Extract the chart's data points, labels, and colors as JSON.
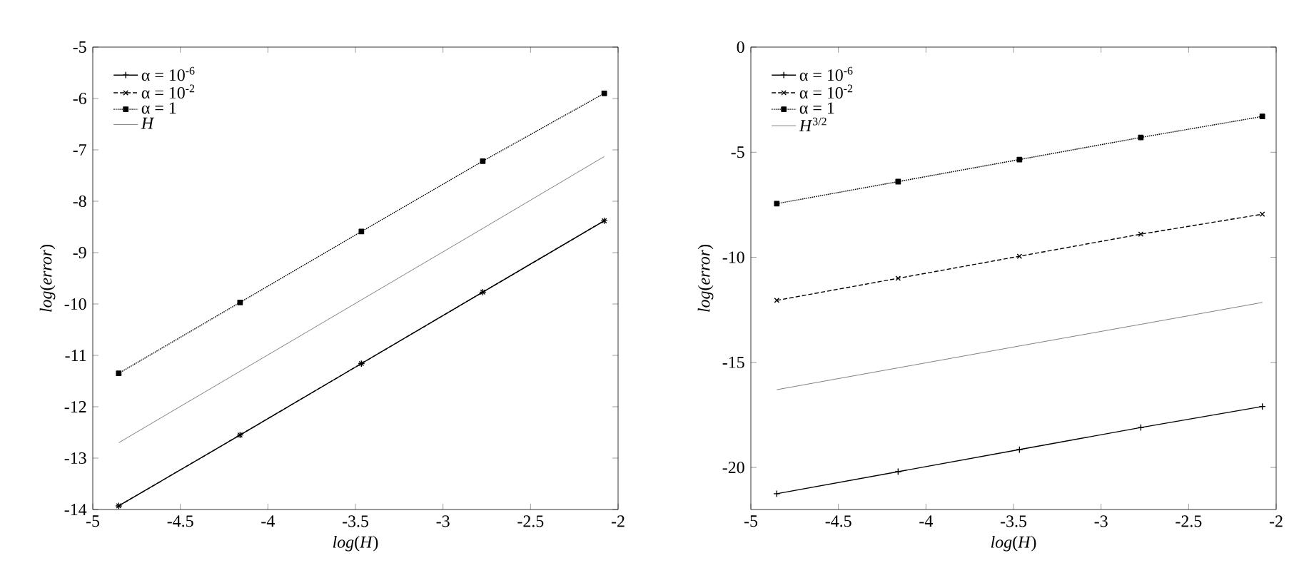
{
  "chart_data": [
    {
      "type": "line",
      "xlabel": "*log*(*H*)",
      "ylabel": "*log*(*error*)",
      "xlim": [
        -5,
        -2
      ],
      "ylim": [
        -14,
        -5
      ],
      "xticks": [
        -5,
        -4.5,
        -4,
        -3.5,
        -3,
        -2.5,
        -2
      ],
      "yticks": [
        -14,
        -13,
        -12,
        -11,
        -10,
        -9,
        -8,
        -7,
        -6,
        -5
      ],
      "legend": "top left",
      "x": [
        -4.852,
        -4.159,
        -3.466,
        -2.773,
        -2.079
      ],
      "series": [
        {
          "name": "α = 10$^{-6}$",
          "color": "#000000",
          "marker": "plus",
          "line_style": "solid",
          "values": [
            -13.93,
            -12.55,
            -11.16,
            -9.77,
            -8.38
          ]
        },
        {
          "name": "α = 10$^{-2}$",
          "color": "#000000",
          "marker": "cross",
          "line_style": "dashed",
          "values": [
            -13.93,
            -12.55,
            -11.16,
            -9.77,
            -8.38
          ]
        },
        {
          "name": "α = 1",
          "color": "#000000",
          "marker": "square",
          "line_style": "dotted",
          "values": [
            -11.35,
            -9.97,
            -8.59,
            -7.22,
            -5.9
          ]
        },
        {
          "name": "*H*",
          "color": "#808080",
          "marker": "none",
          "line_style": "solid",
          "values": [
            -12.7,
            -11.31,
            -9.92,
            -8.53,
            -7.13
          ]
        }
      ]
    },
    {
      "type": "line",
      "xlabel": "*log*(*H*)",
      "ylabel": "*log*(*error*)",
      "xlim": [
        -5,
        -2
      ],
      "ylim": [
        -22,
        0
      ],
      "xticks": [
        -5,
        -4.5,
        -4,
        -3.5,
        -3,
        -2.5,
        -2
      ],
      "yticks": [
        -20,
        -15,
        -10,
        -5,
        0
      ],
      "legend": "top left",
      "x": [
        -4.852,
        -4.159,
        -3.466,
        -2.773,
        -2.079
      ],
      "series": [
        {
          "name": "α = 10$^{-6}$",
          "color": "#000000",
          "marker": "plus",
          "line_style": "solid",
          "values": [
            -21.25,
            -20.2,
            -19.15,
            -18.1,
            -17.1
          ]
        },
        {
          "name": "α = 10$^{-2}$",
          "color": "#000000",
          "marker": "cross",
          "line_style": "dashed",
          "values": [
            -12.05,
            -11.0,
            -9.95,
            -8.9,
            -7.95
          ]
        },
        {
          "name": "α = 1",
          "color": "#000000",
          "marker": "square",
          "line_style": "dotted",
          "values": [
            -7.45,
            -6.4,
            -5.35,
            -4.3,
            -3.3
          ]
        },
        {
          "name": "*H*$^{3/2}$",
          "color": "#808080",
          "marker": "none",
          "line_style": "solid",
          "values": [
            -16.3,
            -15.26,
            -14.22,
            -13.19,
            -12.15
          ]
        }
      ]
    }
  ]
}
